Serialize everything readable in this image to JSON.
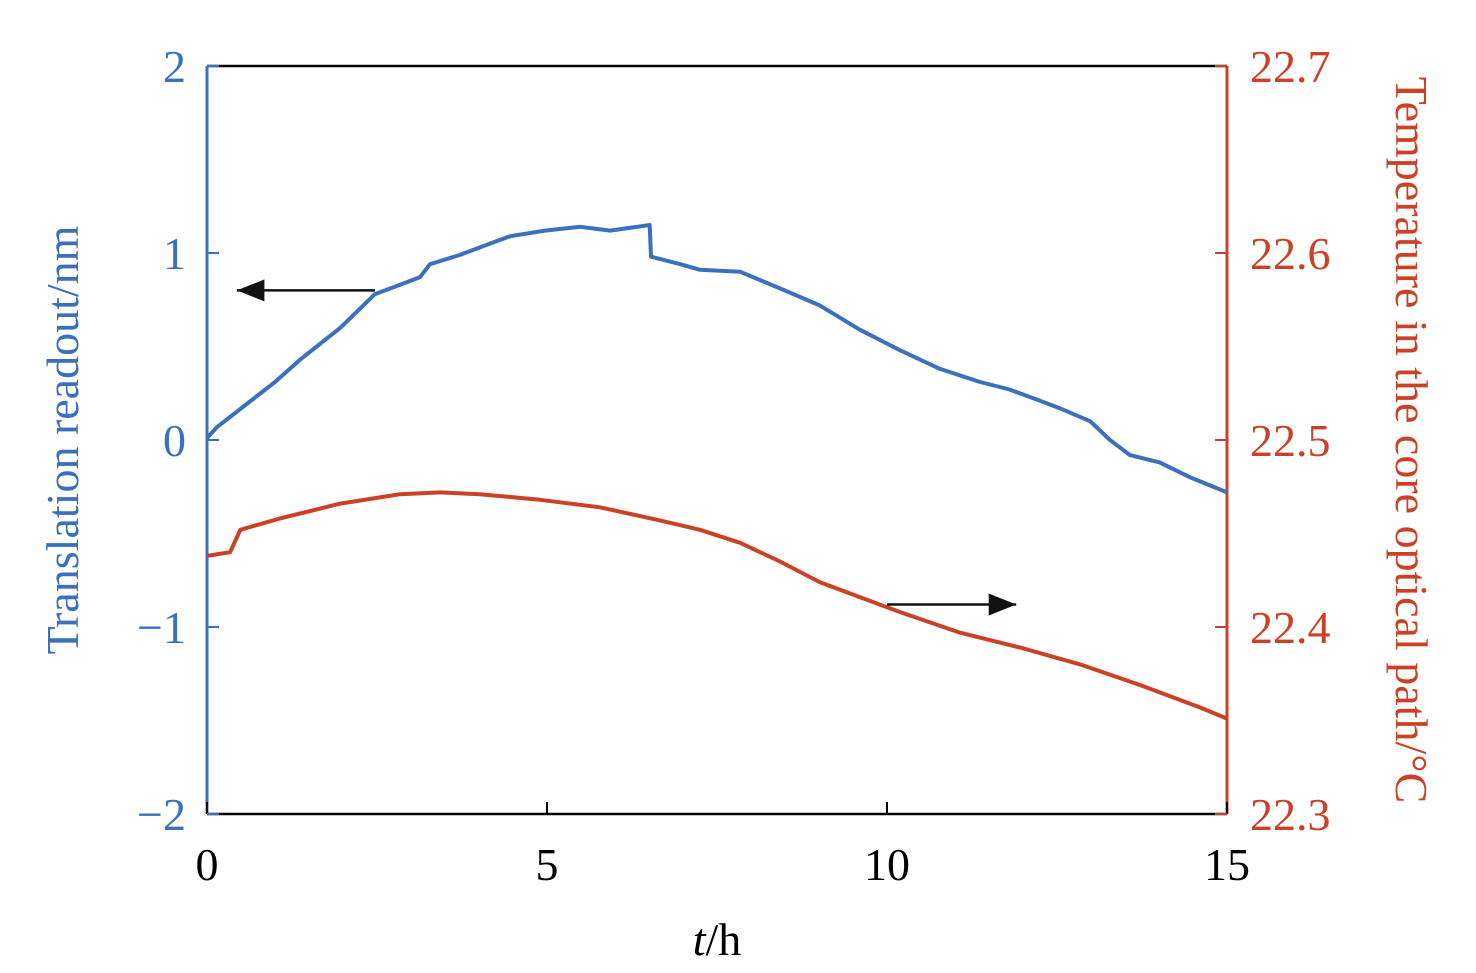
{
  "chart_data": {
    "type": "line",
    "title": "",
    "xlabel_italic": "t",
    "xlabel_rest": "/h",
    "ylabel_left": "Translation readout/nm",
    "ylabel_right": "Temperature in the core optical path/°C",
    "xlim": [
      0,
      15
    ],
    "ylim_left": [
      -2,
      2
    ],
    "ylim_right": [
      22.3,
      22.7
    ],
    "xticks": [
      0,
      5,
      10,
      15
    ],
    "xtick_labels": [
      "0",
      "5",
      "10",
      "15"
    ],
    "yticks_left": [
      2,
      1,
      0,
      -1,
      -2
    ],
    "ytick_labels_left": [
      "2",
      "1",
      "0",
      "−1",
      "−2"
    ],
    "yticks_right": [
      22.7,
      22.6,
      22.5,
      22.4,
      22.3
    ],
    "ytick_labels_right": [
      "22.7",
      "22.6",
      "22.5",
      "22.4",
      "22.3"
    ],
    "grid": false,
    "colors": {
      "left": "#3a70bd",
      "right": "#cc4125",
      "axis": "#000000"
    },
    "annotations": [
      {
        "type": "arrow",
        "direction": "left",
        "indicates": "left axis",
        "at_t": [
          2.47,
          0.44
        ],
        "at_y_left": 0.8
      },
      {
        "type": "arrow",
        "direction": "right",
        "indicates": "right axis",
        "at_t": [
          10.0,
          11.9
        ],
        "at_y_right": 22.412
      }
    ],
    "series": [
      {
        "name": "Translation readout",
        "axis": "left",
        "x": [
          0,
          0.15,
          1.0,
          1.37,
          1.96,
          2.47,
          2.84,
          3.13,
          3.28,
          3.72,
          4.16,
          4.46,
          4.97,
          5.49,
          5.93,
          6.51,
          6.53,
          6.96,
          7.25,
          7.84,
          8.43,
          9.01,
          9.6,
          10.19,
          10.78,
          11.37,
          11.8,
          12.25,
          12.54,
          12.99,
          13.28,
          13.57,
          14.01,
          14.46,
          15.0
        ],
        "y": [
          0.01,
          0.07,
          0.31,
          0.43,
          0.6,
          0.78,
          0.83,
          0.87,
          0.94,
          0.99,
          1.05,
          1.09,
          1.12,
          1.14,
          1.12,
          1.15,
          0.98,
          0.94,
          0.91,
          0.9,
          0.81,
          0.72,
          0.59,
          0.48,
          0.38,
          0.31,
          0.27,
          0.21,
          0.17,
          0.1,
          0.0,
          -0.08,
          -0.12,
          -0.2,
          -0.28
        ]
      },
      {
        "name": "Temperature in the core optical path",
        "axis": "right",
        "x": [
          0,
          0.34,
          0.49,
          1.07,
          1.96,
          2.84,
          3.43,
          4.01,
          4.9,
          5.78,
          6.66,
          7.25,
          7.84,
          8.43,
          9.01,
          9.6,
          10.19,
          11.07,
          11.96,
          12.84,
          13.72,
          14.6,
          15.0
        ],
        "y": [
          22.438,
          22.44,
          22.452,
          22.458,
          22.466,
          22.471,
          22.472,
          22.471,
          22.468,
          22.464,
          22.457,
          22.452,
          22.445,
          22.435,
          22.424,
          22.416,
          22.408,
          22.397,
          22.389,
          22.38,
          22.369,
          22.357,
          22.351
        ]
      }
    ]
  }
}
